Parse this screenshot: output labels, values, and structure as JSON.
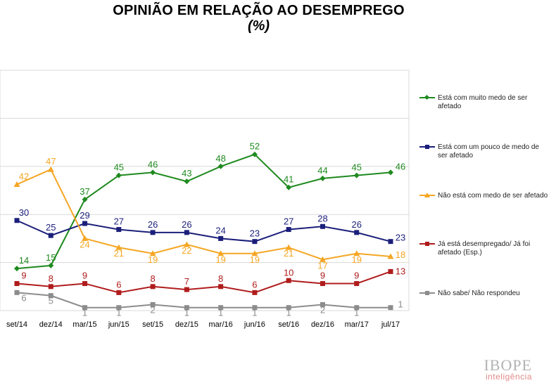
{
  "title": "OPINIÃO EM RELAÇÃO AO DESEMPREGO",
  "subtitle": "(%)",
  "brand": {
    "name": "IBOPE",
    "sub": "inteligência"
  },
  "chart_data": {
    "type": "line",
    "title": "OPINIÃO EM RELAÇÃO AO DESEMPREGO",
    "subtitle": "(%)",
    "categories": [
      "set/14",
      "dez/14",
      "mar/15",
      "jun/15",
      "set/15",
      "dez/15",
      "mar/16",
      "jun/16",
      "set/16",
      "dez/16",
      "mar/17",
      "jul/17"
    ],
    "ylim": [
      0,
      80
    ],
    "grid": true,
    "legend_position": "right",
    "series": [
      {
        "name": "Está com muito medo de ser afetado",
        "color": "#1F8A1F",
        "marker": "diamond",
        "values": [
          14,
          15,
          37,
          45,
          46,
          43,
          48,
          52,
          41,
          44,
          45,
          46
        ]
      },
      {
        "name": "Está com um pouco de medo de ser afetado",
        "color": "#1B1F7A",
        "marker": "square",
        "values": [
          30,
          25,
          29,
          27,
          26,
          26,
          24,
          23,
          27,
          28,
          26,
          23
        ]
      },
      {
        "name": "Não está com medo de ser afetado",
        "color": "#F5A623",
        "marker": "triangle",
        "values": [
          42,
          47,
          24,
          21,
          19,
          22,
          19,
          19,
          21,
          17,
          19,
          18
        ]
      },
      {
        "name": "Já está desempregado/ Já foi afetado (Esp.)",
        "color": "#B01C1C",
        "marker": "square",
        "values": [
          9,
          8,
          9,
          6,
          8,
          7,
          8,
          6,
          10,
          9,
          9,
          13
        ]
      },
      {
        "name": "Não sabe/ Não respondeu",
        "color": "#8C8C8C",
        "marker": "square",
        "values": [
          6,
          5,
          1,
          1,
          2,
          1,
          1,
          1,
          1,
          2,
          1,
          1
        ]
      }
    ]
  }
}
